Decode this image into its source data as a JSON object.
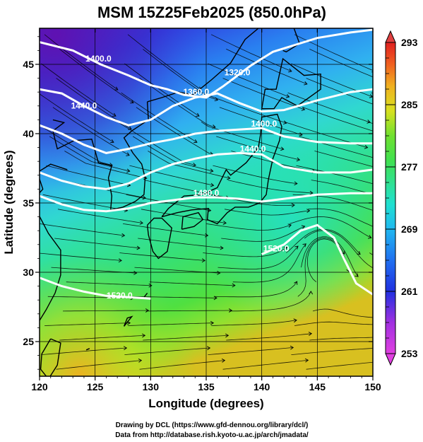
{
  "chart_data": {
    "type": "heatmap",
    "title": "MSM 15Z25Feb2025 (850.0hPa)",
    "xlabel": "Longitude (degrees)",
    "ylabel": "Latitude  (degrees)",
    "xlim": [
      120,
      150
    ],
    "ylim": [
      22.5,
      47.6
    ],
    "x_ticks": [
      120,
      125,
      130,
      135,
      140,
      145,
      150
    ],
    "y_ticks": [
      25,
      30,
      35,
      40,
      45
    ],
    "grid": true,
    "colorbar": {
      "min": 253,
      "max": 293,
      "tick_labels": [
        253,
        261,
        269,
        277,
        285,
        293
      ],
      "colors": [
        "#e040e0",
        "#a030e0",
        "#6020d0",
        "#2030e0",
        "#2070f0",
        "#20b8f0",
        "#20e0d0",
        "#30e090",
        "#40e050",
        "#90e030",
        "#d8e020",
        "#f0b020",
        "#f06020",
        "#e02020"
      ]
    },
    "field": "temperature",
    "contour_field": "geopotential height",
    "contour_labels": [
      {
        "label": "1400.0",
        "lon": 125.3,
        "lat": 45.2
      },
      {
        "label": "1320.0",
        "lon": 137.8,
        "lat": 44.2
      },
      {
        "label": "1360.0",
        "lon": 134.1,
        "lat": 42.8
      },
      {
        "label": "1440.0",
        "lon": 124.0,
        "lat": 41.8
      },
      {
        "label": "1400.0",
        "lon": 140.2,
        "lat": 40.5
      },
      {
        "label": "1440.0",
        "lon": 139.2,
        "lat": 38.7
      },
      {
        "label": "1480.0",
        "lon": 135.0,
        "lat": 35.5
      },
      {
        "label": "1520.0",
        "lon": 141.3,
        "lat": 31.5
      },
      {
        "label": "1520.0",
        "lon": 127.2,
        "lat": 28.1
      }
    ]
  },
  "credits": {
    "line1": "Drawing by DCL (https://www.gfd-dennou.org/library/dcl/)",
    "line2": "Data from http://database.rish.kyoto-u.ac.jp/arch/jmadata/"
  }
}
